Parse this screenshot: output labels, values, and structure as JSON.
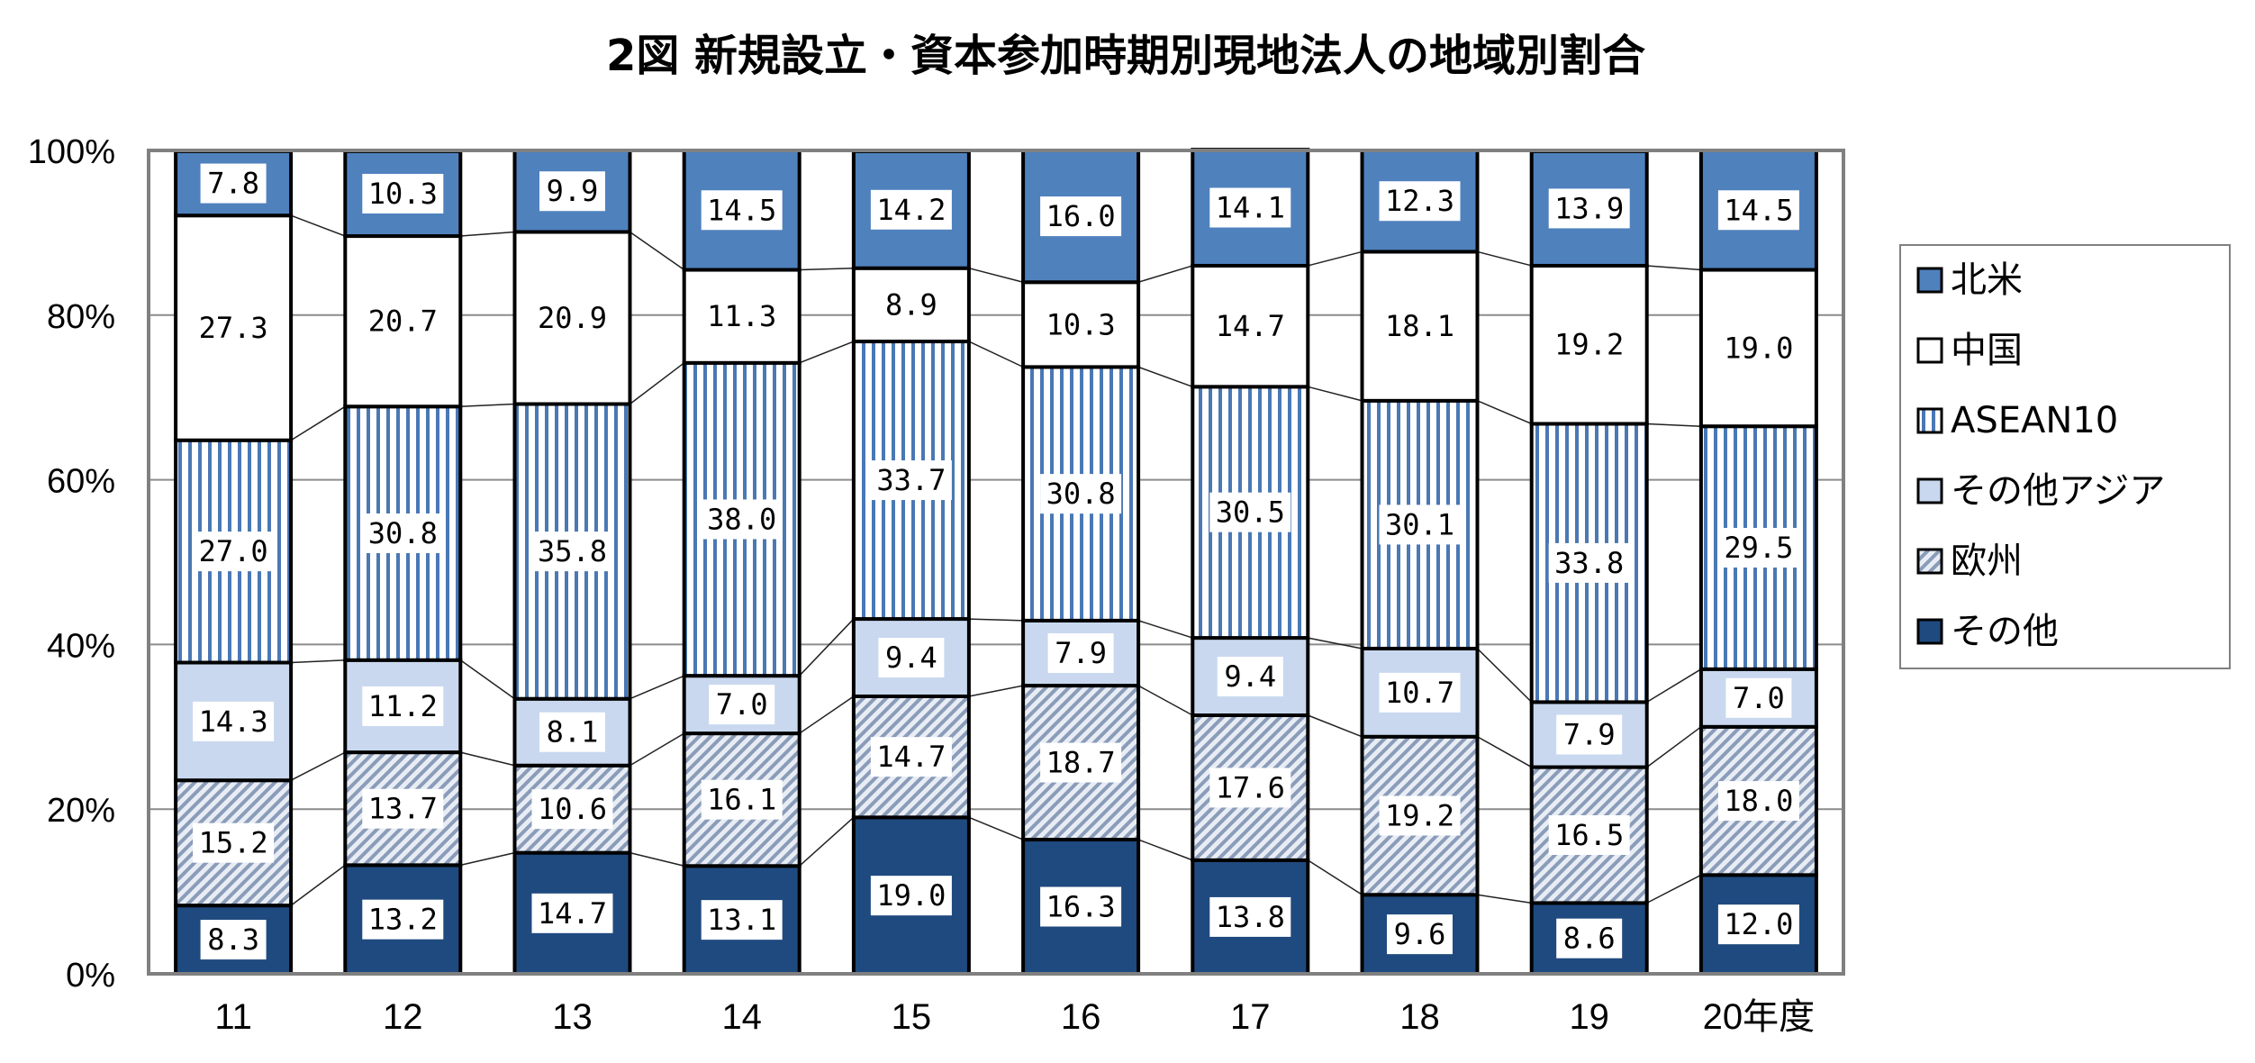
{
  "chart_data": {
    "type": "bar",
    "stacked": true,
    "percent": true,
    "title": "2図 新規設立・資本参加時期別現地法人の地域別割合",
    "xlabel": "",
    "ylabel": "",
    "ylim": [
      0,
      100
    ],
    "yticks": [
      "0%",
      "20%",
      "40%",
      "60%",
      "80%",
      "100%"
    ],
    "categories": [
      "11",
      "12",
      "13",
      "14",
      "15",
      "16",
      "17",
      "18",
      "19",
      "20年度"
    ],
    "grid": true,
    "legend_position": "right",
    "series": [
      {
        "name": "その他",
        "color": "#1f4a7f",
        "pattern": "solid-dark",
        "values": [
          8.3,
          13.2,
          14.7,
          13.1,
          19.0,
          16.3,
          13.8,
          9.6,
          8.6,
          12.0
        ],
        "labels": [
          "8.3",
          "13.2",
          "14.7",
          "13.1",
          "19.0",
          "16.3",
          "13.8",
          "9.6",
          "8.6",
          "12.0"
        ]
      },
      {
        "name": "欧州",
        "color": "#9bb0cc",
        "pattern": "diagonal-hatch",
        "values": [
          15.2,
          13.7,
          10.6,
          16.1,
          14.7,
          18.7,
          17.6,
          19.2,
          16.5,
          18.0
        ],
        "labels": [
          "15.2",
          "13.7",
          "10.6",
          "16.1",
          "14.7",
          "18.7",
          "17.6",
          "19.2",
          "16.5",
          "18.0"
        ]
      },
      {
        "name": "その他アジア",
        "color": "#c9d8ef",
        "pattern": "solid-light",
        "values": [
          14.3,
          11.2,
          8.1,
          7.0,
          9.4,
          7.9,
          9.4,
          10.7,
          7.9,
          7.0
        ],
        "labels": [
          "14.3",
          "11.2",
          "8.1",
          "7.0",
          "9.4",
          "7.9",
          "9.4",
          "10.7",
          "7.9",
          "7.0"
        ]
      },
      {
        "name": "ASEAN10",
        "color": "#4a78b5",
        "pattern": "vertical-stripes",
        "values": [
          27.0,
          30.8,
          35.8,
          38.0,
          33.7,
          30.8,
          30.5,
          30.1,
          33.8,
          29.5
        ],
        "labels": [
          "27.0",
          "30.8",
          "35.8",
          "38.0",
          "33.7",
          "30.8",
          "30.5",
          "30.1",
          "33.8",
          "29.5"
        ]
      },
      {
        "name": "中国",
        "color": "#ffffff",
        "pattern": "solid-white",
        "values": [
          27.3,
          20.7,
          20.9,
          11.3,
          8.9,
          10.3,
          14.7,
          18.1,
          19.2,
          19.0
        ],
        "labels": [
          "27.3",
          "20.7",
          "20.9",
          "11.3",
          "8.9",
          "10.3",
          "14.7",
          "18.1",
          "19.2",
          "19.0"
        ]
      },
      {
        "name": "北米",
        "color": "#4f81bd",
        "pattern": "solid-mid",
        "values": [
          7.8,
          10.3,
          9.9,
          14.5,
          14.2,
          16.0,
          14.1,
          12.3,
          13.9,
          14.5
        ],
        "labels": [
          "7.8",
          "10.3",
          "9.9",
          "14.5",
          "14.2",
          "16.0",
          "14.1",
          "12.3",
          "13.9",
          "14.5"
        ]
      }
    ],
    "legend_order": [
      "北米",
      "中国",
      "ASEAN10",
      "その他アジア",
      "欧州",
      "その他"
    ]
  }
}
